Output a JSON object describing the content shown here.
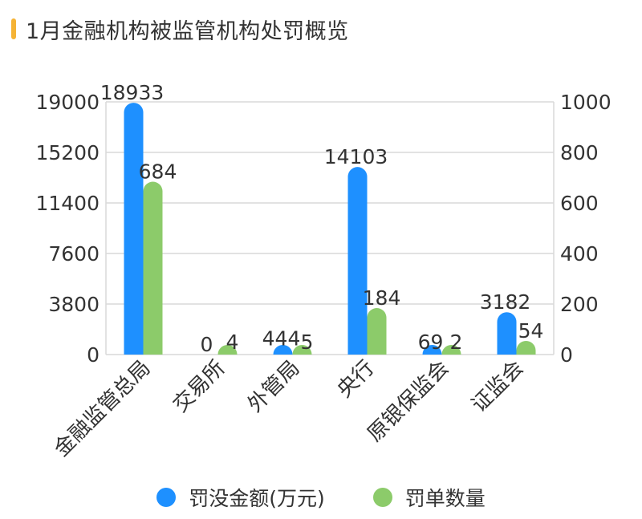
{
  "title": "1月金融机构被监管机构处罚概览",
  "colors": {
    "accent": "#F5B335",
    "series_amount": "#1E90FF",
    "series_count": "#8CCB6A",
    "grid": "#D9D9D9",
    "text": "#333333"
  },
  "chart_data": {
    "type": "bar",
    "categories": [
      "金融监管总局",
      "交易所",
      "外管局",
      "央行",
      "原银保监会",
      "证监会"
    ],
    "series": [
      {
        "name": "罚没金额(万元)",
        "axis": "left",
        "values": [
          18933,
          0,
          444,
          14103,
          69,
          3182
        ],
        "labels": [
          "18933",
          "0",
          "444",
          "14103",
          "69",
          "3182"
        ]
      },
      {
        "name": "罚单数量",
        "axis": "right",
        "values": [
          684,
          4,
          5,
          184,
          2,
          54
        ],
        "labels": [
          "684",
          "4",
          "5",
          "184",
          "2",
          "54"
        ]
      }
    ],
    "y_left": {
      "ticks": [
        "19000",
        "15200",
        "11400",
        "7600",
        "3800",
        "0"
      ],
      "range": [
        0,
        19000
      ]
    },
    "y_right": {
      "ticks": [
        "1000",
        "800",
        "600",
        "400",
        "200",
        "0"
      ],
      "range": [
        0,
        1000
      ]
    },
    "xlabel": "",
    "ylabel_left": "",
    "ylabel_right": "",
    "grid": true,
    "legend_placement": "bottom-center"
  }
}
